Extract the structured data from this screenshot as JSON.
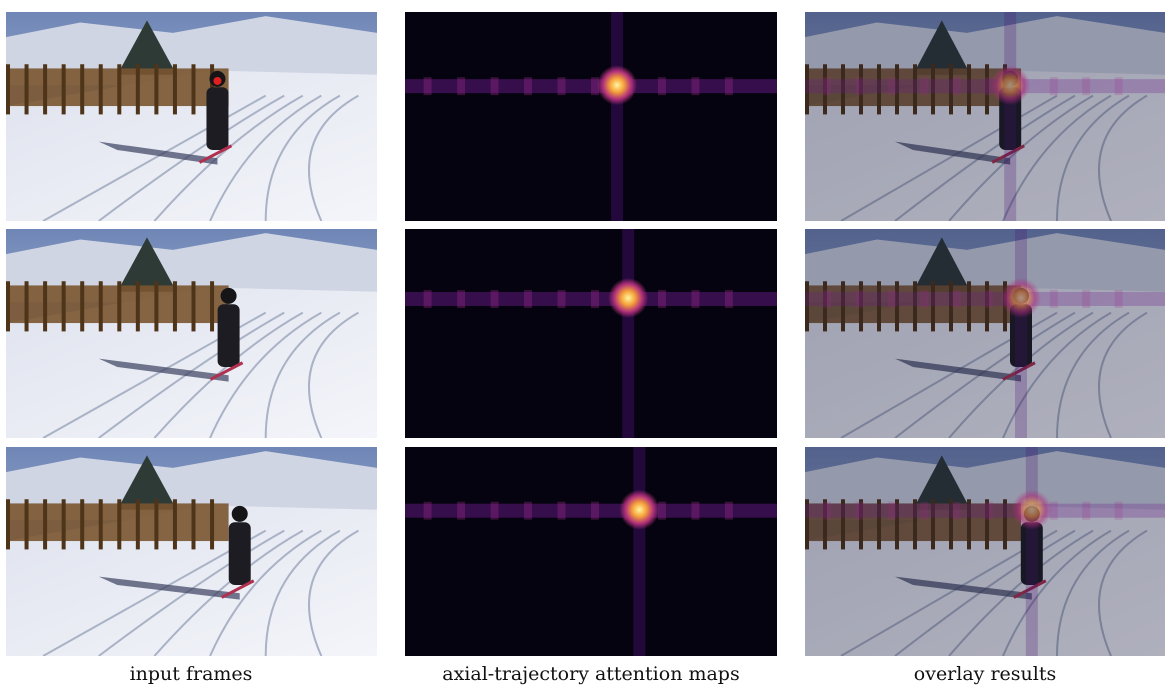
{
  "captions": [
    "input frames",
    "axial-trajectory attention maps",
    "overlay results"
  ]
}
